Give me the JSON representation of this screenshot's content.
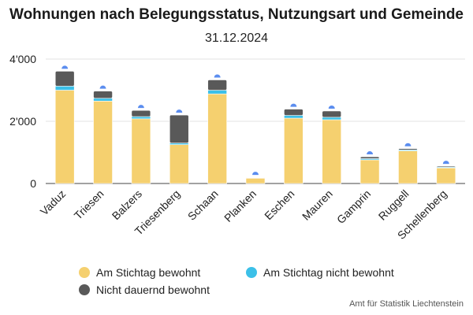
{
  "chart_data": {
    "type": "bar",
    "title": "Wohnungen nach Belegungsstatus, Nutzungsart und Gemeinde",
    "subtitle": "31.12.2024",
    "stacked": true,
    "categories": [
      "Vaduz",
      "Triesen",
      "Balzers",
      "Triesenberg",
      "Schaan",
      "Planken",
      "Eschen",
      "Mauren",
      "Gamprin",
      "Ruggell",
      "Schellenberg"
    ],
    "series": [
      {
        "name": "Am Stichtag bewohnt",
        "color": "#f5d06f",
        "values": [
          3000,
          2650,
          2080,
          1250,
          2880,
          170,
          2100,
          2050,
          760,
          1050,
          500
        ]
      },
      {
        "name": "Am Stichtag nicht bewohnt",
        "color": "#3cc0e8",
        "values": [
          130,
          90,
          70,
          50,
          120,
          15,
          90,
          80,
          40,
          30,
          25
        ]
      },
      {
        "name": "Nicht dauernd bewohnt",
        "color": "#595959",
        "values": [
          480,
          230,
          200,
          900,
          330,
          15,
          200,
          200,
          60,
          40,
          30
        ]
      }
    ],
    "yticks": [
      0,
      2000,
      4000
    ],
    "ytick_labels": [
      "0",
      "2'000",
      "4'000"
    ],
    "ylim": [
      0,
      4000
    ],
    "grid": true,
    "legend_position": "bottom"
  },
  "legend": {
    "items": [
      "Am Stichtag bewohnt",
      "Am Stichtag nicht bewohnt",
      "Nicht dauernd bewohnt"
    ]
  },
  "source": "Amt für Statistik Liechtenstein"
}
